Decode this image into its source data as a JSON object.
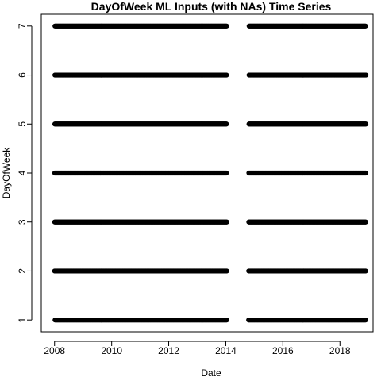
{
  "chart_data": {
    "type": "scatter",
    "title": "DayOfWeek ML Inputs (with NAs) Time Series",
    "xlabel": "Date",
    "ylabel": "DayOfWeek",
    "xlim": [
      "2007-07-15",
      "2019-03-01"
    ],
    "ylim": [
      0.76,
      7.24
    ],
    "x_ticks": [
      {
        "label": "2008",
        "value": "2008-01-01"
      },
      {
        "label": "2010",
        "value": "2010-01-01"
      },
      {
        "label": "2012",
        "value": "2012-01-01"
      },
      {
        "label": "2014",
        "value": "2014-01-01"
      },
      {
        "label": "2016",
        "value": "2016-01-01"
      },
      {
        "label": "2018",
        "value": "2018-01-01"
      }
    ],
    "y_ticks": [
      1,
      2,
      3,
      4,
      5,
      6,
      7
    ],
    "grid": false,
    "marker": "open-circle",
    "marker_color": "#000000",
    "sampling": "daily observations, one point per day at y = day of week",
    "segments": [
      {
        "start": "2008-01-01",
        "end": "2014-01-15"
      },
      {
        "start": "2014-10-20",
        "end": "2018-12-01"
      }
    ],
    "series_values": [
      1,
      2,
      3,
      4,
      5,
      6,
      7
    ]
  }
}
